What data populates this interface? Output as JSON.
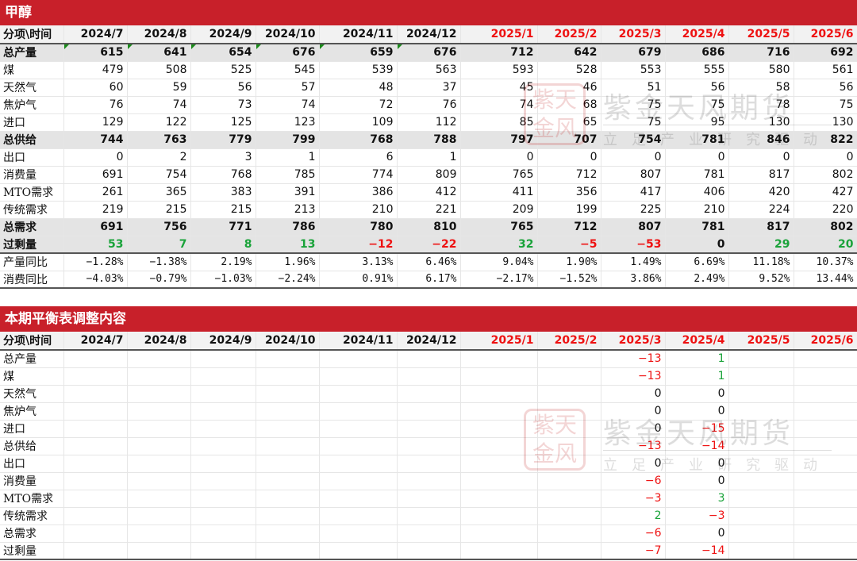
{
  "section1": {
    "title": "甲醇",
    "header": "分项\\时间",
    "months": [
      "2024/7",
      "2024/8",
      "2024/9",
      "2024/10",
      "2024/11",
      "2024/12",
      "2025/1",
      "2025/2",
      "2025/3",
      "2025/4",
      "2025/5",
      "2025/6"
    ],
    "rows": [
      {
        "label": "总产量",
        "values": [
          "615",
          "641",
          "654",
          "676",
          "659",
          "676",
          "712",
          "642",
          "679",
          "686",
          "716",
          "692"
        ]
      },
      {
        "label": "煤",
        "values": [
          "479",
          "508",
          "525",
          "545",
          "539",
          "563",
          "593",
          "528",
          "553",
          "555",
          "580",
          "561"
        ]
      },
      {
        "label": "天然气",
        "values": [
          "60",
          "59",
          "56",
          "57",
          "48",
          "37",
          "45",
          "46",
          "51",
          "56",
          "58",
          "56"
        ]
      },
      {
        "label": "焦炉气",
        "values": [
          "76",
          "74",
          "73",
          "74",
          "72",
          "76",
          "74",
          "68",
          "75",
          "75",
          "78",
          "75"
        ]
      },
      {
        "label": "进口",
        "values": [
          "129",
          "122",
          "125",
          "123",
          "109",
          "112",
          "85",
          "65",
          "75",
          "95",
          "130",
          "130"
        ]
      },
      {
        "label": "总供给",
        "values": [
          "744",
          "763",
          "779",
          "799",
          "768",
          "788",
          "797",
          "707",
          "754",
          "781",
          "846",
          "822"
        ]
      },
      {
        "label": "出口",
        "values": [
          "0",
          "2",
          "3",
          "1",
          "6",
          "1",
          "0",
          "0",
          "0",
          "0",
          "0",
          "0"
        ]
      },
      {
        "label": "消费量",
        "values": [
          "691",
          "754",
          "768",
          "785",
          "774",
          "809",
          "765",
          "712",
          "807",
          "781",
          "817",
          "802"
        ]
      },
      {
        "label": "MTO需求",
        "values": [
          "261",
          "365",
          "383",
          "391",
          "386",
          "412",
          "411",
          "356",
          "417",
          "406",
          "420",
          "427"
        ]
      },
      {
        "label": "传统需求",
        "values": [
          "219",
          "215",
          "215",
          "213",
          "210",
          "221",
          "209",
          "199",
          "225",
          "210",
          "224",
          "220"
        ]
      },
      {
        "label": "总需求",
        "values": [
          "691",
          "756",
          "771",
          "786",
          "780",
          "810",
          "765",
          "712",
          "807",
          "781",
          "817",
          "802"
        ]
      },
      {
        "label": "过剩量",
        "values": [
          "53",
          "7",
          "8",
          "13",
          "−12",
          "−22",
          "32",
          "−5",
          "−53",
          "0",
          "29",
          "20"
        ]
      },
      {
        "label": "产量同比",
        "values": [
          "−1.28%",
          "−1.38%",
          "2.19%",
          "1.96%",
          "3.13%",
          "6.46%",
          "9.04%",
          "1.90%",
          "1.49%",
          "6.69%",
          "11.18%",
          "10.37%"
        ]
      },
      {
        "label": "消费同比",
        "values": [
          "−4.03%",
          "−0.79%",
          "−1.03%",
          "−2.24%",
          "0.91%",
          "6.17%",
          "−2.17%",
          "−1.52%",
          "3.86%",
          "2.49%",
          "9.52%",
          "13.44%"
        ]
      }
    ]
  },
  "section2": {
    "title": "本期平衡表调整内容",
    "header": "分项\\时间",
    "rows": [
      {
        "label": "总产量",
        "values": [
          "",
          "",
          "",
          "",
          "",
          "",
          "",
          "",
          "−13",
          "1",
          "",
          ""
        ]
      },
      {
        "label": "煤",
        "values": [
          "",
          "",
          "",
          "",
          "",
          "",
          "",
          "",
          "−13",
          "1",
          "",
          ""
        ]
      },
      {
        "label": "天然气",
        "values": [
          "",
          "",
          "",
          "",
          "",
          "",
          "",
          "",
          "0",
          "0",
          "",
          ""
        ]
      },
      {
        "label": "焦炉气",
        "values": [
          "",
          "",
          "",
          "",
          "",
          "",
          "",
          "",
          "0",
          "0",
          "",
          ""
        ]
      },
      {
        "label": "进口",
        "values": [
          "",
          "",
          "",
          "",
          "",
          "",
          "",
          "",
          "0",
          "−15",
          "",
          ""
        ]
      },
      {
        "label": "总供给",
        "values": [
          "",
          "",
          "",
          "",
          "",
          "",
          "",
          "",
          "−13",
          "−14",
          "",
          ""
        ]
      },
      {
        "label": "出口",
        "values": [
          "",
          "",
          "",
          "",
          "",
          "",
          "",
          "",
          "0",
          "0",
          "",
          ""
        ]
      },
      {
        "label": "消费量",
        "values": [
          "",
          "",
          "",
          "",
          "",
          "",
          "",
          "",
          "−6",
          "0",
          "",
          ""
        ]
      },
      {
        "label": "MTO需求",
        "values": [
          "",
          "",
          "",
          "",
          "",
          "",
          "",
          "",
          "−3",
          "3",
          "",
          ""
        ]
      },
      {
        "label": "传统需求",
        "values": [
          "",
          "",
          "",
          "",
          "",
          "",
          "",
          "",
          "2",
          "−3",
          "",
          ""
        ]
      },
      {
        "label": "总需求",
        "values": [
          "",
          "",
          "",
          "",
          "",
          "",
          "",
          "",
          "−6",
          "0",
          "",
          ""
        ]
      },
      {
        "label": "过剩量",
        "values": [
          "",
          "",
          "",
          "",
          "",
          "",
          "",
          "",
          "−7",
          "−14",
          "",
          ""
        ]
      }
    ]
  },
  "watermark": {
    "seal": "紫天金风",
    "name": "紫金天风期货",
    "slogan": "立足产业研究驱动"
  },
  "colors": {
    "title_bar": "#c8202a",
    "future_month": "#ee1111",
    "positive": "#1aa33a",
    "negative": "#ee1111"
  }
}
